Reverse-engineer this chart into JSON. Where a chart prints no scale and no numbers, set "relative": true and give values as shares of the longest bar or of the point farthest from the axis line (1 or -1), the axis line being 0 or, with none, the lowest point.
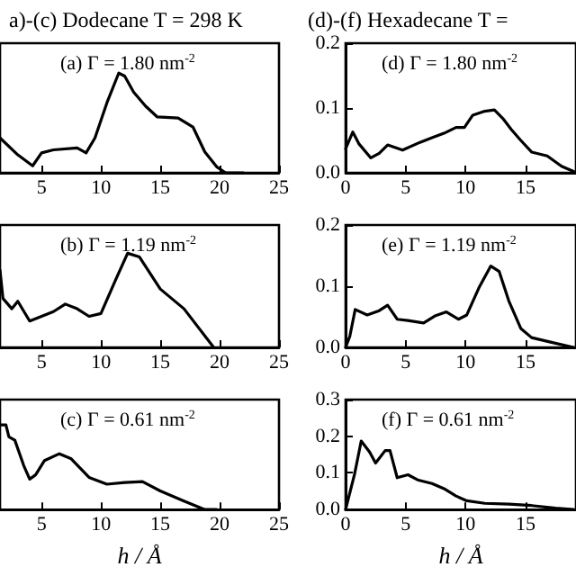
{
  "chart_data": [
    {
      "type": "line",
      "title": "a)-(c) Dodecane T = 298 K",
      "relative": true,
      "tick_labels": "x",
      "annotations": [
        "(a) Γ = 1.80 nm$^{-2}$"
      ],
      "xlim": [
        1.5,
        25
      ],
      "xticks": [
        5,
        10,
        15,
        20,
        25
      ],
      "line_style": "solid",
      "marker": "none",
      "series": [
        {
          "color": "#000000",
          "x": [
            1.5,
            3,
            4.25,
            5,
            6,
            8,
            8.75,
            9.5,
            10.5,
            11.5,
            12,
            12.75,
            13.75,
            14.75,
            16.5,
            17.75,
            18.75,
            19.75,
            20.5,
            22
          ],
          "values": [
            0.35,
            0.18,
            0.07,
            0.2,
            0.23,
            0.25,
            0.2,
            0.35,
            0.7,
            1,
            0.97,
            0.81,
            0.67,
            0.56,
            0.55,
            0.46,
            0.21,
            0.06,
            0,
            0
          ]
        }
      ]
    },
    {
      "type": "line",
      "title": "(d)-(f) Hexadecane T =",
      "annotations": [
        "(d) Γ = 1.80 nm$^{-2}$"
      ],
      "xlim": [
        0,
        19.2
      ],
      "xticks": [
        0,
        5,
        10,
        15
      ],
      "ylim": [
        0,
        0.2
      ],
      "yticks": [
        {
          "value": 0,
          "label": "0.0"
        },
        {
          "value": 0.1,
          "label": "0.1"
        },
        {
          "value": 0.2,
          "label": "0.2"
        }
      ],
      "line_style": "solid",
      "marker": "none",
      "series": [
        {
          "color": "#000000",
          "x": [
            0,
            0.6,
            1.1,
            2.1,
            2.8,
            3.5,
            4.75,
            6.2,
            7.2,
            8.2,
            9.2,
            9.9,
            10.6,
            11.6,
            12.4,
            13.1,
            13.8,
            14.6,
            15.5,
            16.8,
            18,
            19
          ],
          "values": [
            0.037,
            0.063,
            0.045,
            0.023,
            0.03,
            0.043,
            0.035,
            0.047,
            0.054,
            0.061,
            0.07,
            0.07,
            0.089,
            0.095,
            0.097,
            0.084,
            0.067,
            0.05,
            0.032,
            0.026,
            0.01,
            0.002
          ]
        }
      ]
    },
    {
      "type": "line",
      "relative": true,
      "tick_labels": "x",
      "annotations": [
        "(b) Γ = 1.19 nm$^{-2}$"
      ],
      "xlim": [
        1.5,
        25
      ],
      "xticks": [
        5,
        10,
        15,
        20,
        25
      ],
      "line_style": "solid",
      "marker": "none",
      "series": [
        {
          "color": "#000000",
          "x": [
            1.5,
            1.75,
            2.5,
            3,
            4,
            5,
            6,
            7,
            8,
            9,
            10,
            11.25,
            12.25,
            13.25,
            15,
            17,
            19.5
          ],
          "values": [
            0.82,
            0.52,
            0.41,
            0.49,
            0.28,
            0.33,
            0.38,
            0.46,
            0.41,
            0.33,
            0.36,
            0.72,
            1,
            0.96,
            0.62,
            0.41,
            0
          ]
        }
      ]
    },
    {
      "type": "line",
      "annotations": [
        "(e) Γ = 1.19 nm$^{-2}$"
      ],
      "xlim": [
        0,
        19.2
      ],
      "xticks": [
        0,
        5,
        10,
        15
      ],
      "ylim": [
        0,
        0.2
      ],
      "yticks": [
        {
          "value": 0,
          "label": "0.0"
        },
        {
          "value": 0.1,
          "label": "0.1"
        },
        {
          "value": 0.2,
          "label": "0.2"
        }
      ],
      "line_style": "solid",
      "marker": "none",
      "series": [
        {
          "color": "#000000",
          "x": [
            0,
            0.35,
            0.8,
            1.8,
            2.8,
            3.5,
            4.3,
            5.2,
            6.5,
            7.5,
            8.4,
            9.4,
            10.1,
            11.1,
            12.1,
            12.8,
            13.6,
            14.6,
            15.5,
            17,
            19
          ],
          "values": [
            0,
            0.018,
            0.062,
            0.053,
            0.06,
            0.069,
            0.046,
            0.044,
            0.04,
            0.052,
            0.058,
            0.046,
            0.053,
            0.097,
            0.133,
            0.124,
            0.076,
            0.031,
            0.016,
            0.009,
            0
          ]
        }
      ]
    },
    {
      "type": "line",
      "relative": true,
      "tick_labels": "x",
      "xlabel": "h / Å",
      "annotations": [
        "(c) Γ = 0.61 nm$^{-2}$"
      ],
      "xlim": [
        1.5,
        25
      ],
      "xticks": [
        5,
        10,
        15,
        20,
        25
      ],
      "line_style": "solid",
      "marker": "none",
      "series": [
        {
          "color": "#000000",
          "x": [
            1.5,
            2,
            2.25,
            2.75,
            3.5,
            4,
            4.5,
            5.25,
            6.5,
            7.5,
            9,
            10.5,
            12,
            13.5,
            15,
            17,
            18.75,
            19.75
          ],
          "values": [
            1,
            1,
            0.86,
            0.82,
            0.52,
            0.36,
            0.41,
            0.58,
            0.66,
            0.6,
            0.38,
            0.3,
            0.32,
            0.33,
            0.22,
            0.1,
            0,
            0
          ]
        }
      ]
    },
    {
      "type": "line",
      "xlabel": "h / Å",
      "annotations": [
        "(f) Γ = 0.61 nm$^{-2}$"
      ],
      "xlim": [
        0,
        19.2
      ],
      "xticks": [
        0,
        5,
        10,
        15
      ],
      "ylim": [
        0,
        0.3
      ],
      "yticks": [
        {
          "value": 0,
          "label": "0.0"
        },
        {
          "value": 0.1,
          "label": "0.1"
        },
        {
          "value": 0.2,
          "label": "0.2"
        },
        {
          "value": 0.3,
          "label": "0.3"
        }
      ],
      "line_style": "solid",
      "marker": "none",
      "series": [
        {
          "color": "#000000",
          "x": [
            0,
            0.75,
            1.3,
            2,
            2.5,
            3.3,
            3.7,
            4.3,
            5.2,
            6,
            7.2,
            8.2,
            9.2,
            10.1,
            11.6,
            13.6,
            15.5,
            17.5,
            19
          ],
          "values": [
            0,
            0.097,
            0.187,
            0.157,
            0.127,
            0.161,
            0.161,
            0.087,
            0.095,
            0.081,
            0.071,
            0.057,
            0.037,
            0.024,
            0.017,
            0.015,
            0.011,
            0.004,
            0
          ]
        }
      ]
    }
  ]
}
